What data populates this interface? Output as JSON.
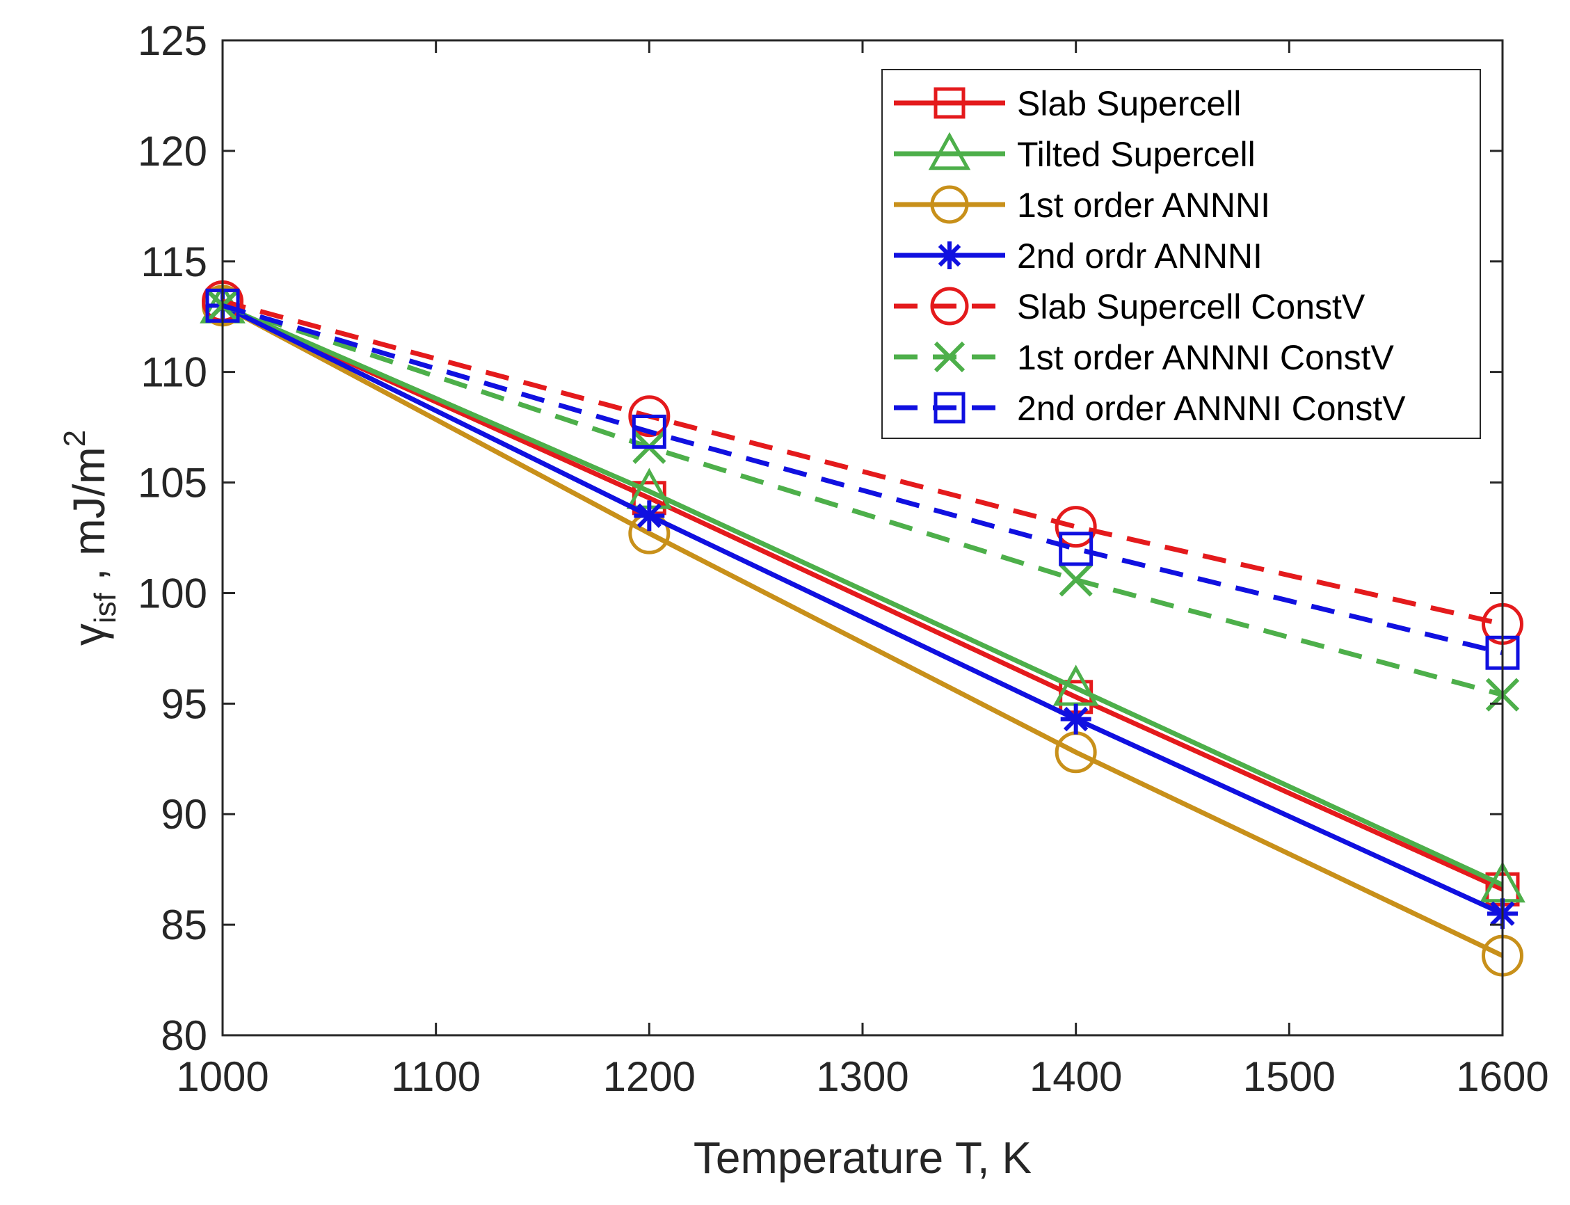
{
  "chart_data": {
    "type": "line",
    "xlabel": "Temperature T, K",
    "ylabel": {
      "base": "γ",
      "sub": "isf",
      "mid": " , mJ/m",
      "sup": "2"
    },
    "xlim": [
      1000,
      1600
    ],
    "ylim": [
      80,
      125
    ],
    "xticks": [
      1000,
      1100,
      1200,
      1300,
      1400,
      1500,
      1600
    ],
    "yticks": [
      80,
      85,
      90,
      95,
      100,
      105,
      110,
      115,
      120,
      125
    ],
    "grid": false,
    "legend_position": "top-right",
    "series": [
      {
        "name": "Slab Supercell",
        "color": "#e41a1c",
        "dash": "solid",
        "marker": "square",
        "x": [
          1000,
          1200,
          1400,
          1600
        ],
        "y": [
          113.0,
          104.3,
          95.3,
          86.6
        ]
      },
      {
        "name": "Tilted Supercell",
        "color": "#4daf4a",
        "dash": "solid",
        "marker": "triangle",
        "x": [
          1000,
          1200,
          1400,
          1600
        ],
        "y": [
          113.0,
          104.6,
          95.7,
          86.8
        ]
      },
      {
        "name": "1st order ANNNI",
        "color": "#c8901a",
        "dash": "solid",
        "marker": "circle",
        "x": [
          1000,
          1200,
          1400,
          1600
        ],
        "y": [
          113.0,
          102.7,
          92.8,
          83.6
        ]
      },
      {
        "name": "2nd ordr ANNNI",
        "color": "#1010e0",
        "dash": "solid",
        "marker": "asterisk",
        "x": [
          1000,
          1200,
          1400,
          1600
        ],
        "y": [
          113.0,
          103.5,
          94.3,
          85.5
        ]
      },
      {
        "name": "Slab Supercell ConstV",
        "color": "#e41a1c",
        "dash": "dashed",
        "marker": "circle",
        "x": [
          1000,
          1200,
          1400,
          1600
        ],
        "y": [
          113.2,
          108.0,
          103.0,
          98.6
        ]
      },
      {
        "name": "1st order ANNNI ConstV",
        "color": "#4daf4a",
        "dash": "dashed",
        "marker": "x",
        "x": [
          1000,
          1200,
          1400,
          1600
        ],
        "y": [
          113.0,
          106.6,
          100.6,
          95.4
        ]
      },
      {
        "name": "2nd order ANNNI ConstV",
        "color": "#1010e0",
        "dash": "dashed",
        "marker": "square",
        "x": [
          1000,
          1200,
          1400,
          1600
        ],
        "y": [
          113.0,
          107.3,
          102.0,
          97.3
        ]
      }
    ]
  }
}
